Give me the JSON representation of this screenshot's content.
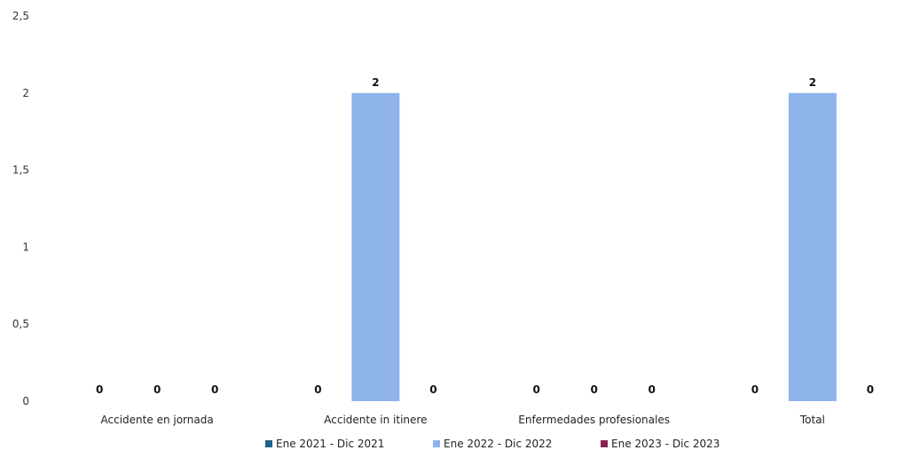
{
  "chart_data": {
    "type": "bar",
    "title": "",
    "xlabel": "",
    "ylabel": "",
    "ylim": [
      0,
      2.5
    ],
    "yticks": [
      "0",
      "0,5",
      "1",
      "1,5",
      "2",
      "2,5"
    ],
    "grid": false,
    "legend_position": "bottom",
    "categories": [
      "Accidente en jornada",
      "Accidente in itinere",
      "Enfermedades profesionales",
      "Total"
    ],
    "series": [
      {
        "name": "Ene 2021 - Dic 2021",
        "values": [
          0,
          0,
          0,
          0
        ],
        "color": "#1f5f8b"
      },
      {
        "name": "Ene 2022 - Dic 2022",
        "values": [
          0,
          2,
          0,
          2
        ],
        "color": "#8fb4ec"
      },
      {
        "name": "Ene 2023 - Dic 2023",
        "values": [
          0,
          0,
          0,
          0
        ],
        "color": "#8b2250"
      }
    ]
  }
}
